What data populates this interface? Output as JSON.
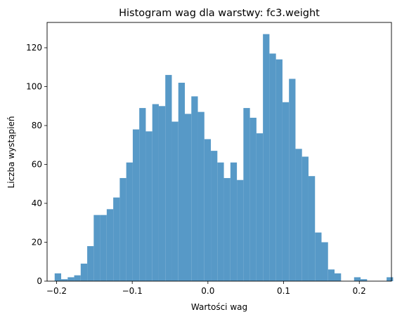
{
  "chart_data": {
    "type": "bar",
    "title": "Histogram wag dla warstwy: fc3.weight",
    "xlabel": "Wartości wag",
    "ylabel": "Liczba wystąpień",
    "bar_color": "#5799c7",
    "xlim": [
      -0.2125,
      0.2425
    ],
    "ylim": [
      0,
      133
    ],
    "xticks": [
      -0.2,
      -0.1,
      0.0,
      0.1,
      0.2
    ],
    "xtick_labels": [
      "−0.2",
      "−0.1",
      "0.0",
      "0.1",
      "0.2"
    ],
    "yticks": [
      0,
      20,
      40,
      60,
      80,
      100,
      120
    ],
    "yticks_labels": [
      "0",
      "20",
      "40",
      "60",
      "80",
      "100",
      "120"
    ],
    "bin_start": -0.2025,
    "bin_width": 0.0086,
    "values": [
      4,
      1,
      2,
      3,
      9,
      18,
      34,
      34,
      37,
      43,
      53,
      61,
      78,
      89,
      77,
      91,
      90,
      106,
      82,
      102,
      86,
      95,
      87,
      73,
      67,
      61,
      53,
      61,
      52,
      89,
      84,
      76,
      127,
      117,
      114,
      92,
      104,
      68,
      64,
      54,
      25,
      20,
      6,
      4,
      0,
      0,
      2,
      1,
      0,
      0,
      0,
      2
    ]
  }
}
